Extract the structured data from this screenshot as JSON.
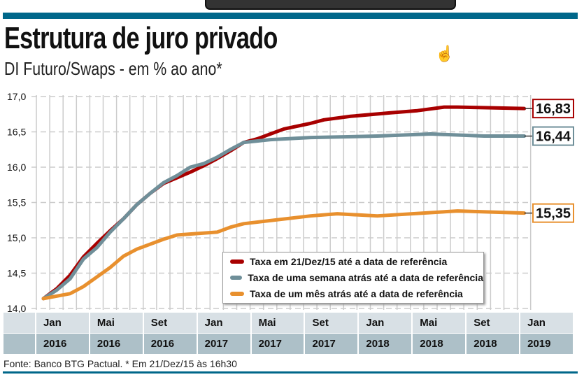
{
  "header": {
    "title": "Estrutura de juro privado",
    "subtitle": "DI Futuro/Swaps - em % ao ano*"
  },
  "footer": {
    "source": "Fonte: Banco BTG Pactual. * Em 21/Dez/15 às 16h30"
  },
  "colors": {
    "accent": "#00678a",
    "red": "#a80000",
    "grey": "#6f8f99",
    "orange": "#e8902e"
  },
  "chart_data": {
    "type": "line",
    "ylim": [
      14.0,
      17.0
    ],
    "yticks": [
      "17,0",
      "16,5",
      "16,0",
      "15,5",
      "15,0",
      "14,5",
      "14,0"
    ],
    "grid": "dashed",
    "legend_placement": "bottom-right",
    "x_labels": [
      {
        "month": "Jan",
        "year": "2016"
      },
      {
        "month": "Mai",
        "year": "2016"
      },
      {
        "month": "Set",
        "year": "2016"
      },
      {
        "month": "Jan",
        "year": "2017"
      },
      {
        "month": "Mai",
        "year": "2017"
      },
      {
        "month": "Set",
        "year": "2017"
      },
      {
        "month": "Jan",
        "year": "2018"
      },
      {
        "month": "Mai",
        "year": "2018"
      },
      {
        "month": "Set",
        "year": "2018"
      },
      {
        "month": "Jan",
        "year": "2019"
      }
    ],
    "series": [
      {
        "name": "Taxa em 21/Dez/15 até a data de referência",
        "color": "#a80000",
        "end_label": "16,83",
        "points": [
          [
            "2016-01",
            14.14
          ],
          [
            "2016-02",
            14.28
          ],
          [
            "2016-03",
            14.47
          ],
          [
            "2016-04",
            14.73
          ],
          [
            "2016-05",
            14.92
          ],
          [
            "2016-06",
            15.1
          ],
          [
            "2016-07",
            15.27
          ],
          [
            "2016-08",
            15.47
          ],
          [
            "2016-09",
            15.63
          ],
          [
            "2016-10",
            15.77
          ],
          [
            "2016-11",
            15.85
          ],
          [
            "2016-12",
            15.93
          ],
          [
            "2017-01",
            16.02
          ],
          [
            "2017-02",
            16.12
          ],
          [
            "2017-03",
            16.23
          ],
          [
            "2017-04",
            16.35
          ],
          [
            "2017-05",
            16.4
          ],
          [
            "2017-06",
            16.47
          ],
          [
            "2017-07",
            16.54
          ],
          [
            "2017-09",
            16.62
          ],
          [
            "2017-10",
            16.67
          ],
          [
            "2017-12",
            16.72
          ],
          [
            "2018-03",
            16.77
          ],
          [
            "2018-05",
            16.8
          ],
          [
            "2018-07",
            16.85
          ],
          [
            "2018-08",
            16.85
          ],
          [
            "2019-01",
            16.83
          ]
        ]
      },
      {
        "name": "Taxa de uma semana atrás até a data de referência",
        "color": "#6f8f99",
        "end_label": "16,44",
        "points": [
          [
            "2016-01",
            14.14
          ],
          [
            "2016-02",
            14.26
          ],
          [
            "2016-03",
            14.42
          ],
          [
            "2016-04",
            14.7
          ],
          [
            "2016-05",
            14.86
          ],
          [
            "2016-06",
            15.08
          ],
          [
            "2016-07",
            15.27
          ],
          [
            "2016-08",
            15.47
          ],
          [
            "2016-09",
            15.63
          ],
          [
            "2016-10",
            15.78
          ],
          [
            "2016-11",
            15.88
          ],
          [
            "2016-12",
            16.0
          ],
          [
            "2017-01",
            16.05
          ],
          [
            "2017-02",
            16.14
          ],
          [
            "2017-03",
            16.25
          ],
          [
            "2017-04",
            16.35
          ],
          [
            "2017-05",
            16.37
          ],
          [
            "2017-06",
            16.39
          ],
          [
            "2017-09",
            16.42
          ],
          [
            "2018-02",
            16.44
          ],
          [
            "2018-06",
            16.47
          ],
          [
            "2018-10",
            16.44
          ],
          [
            "2019-01",
            16.44
          ]
        ]
      },
      {
        "name": "Taxa de um mês atrás até a data de referência",
        "color": "#e8902e",
        "end_label": "15,35",
        "points": [
          [
            "2016-01",
            14.14
          ],
          [
            "2016-03",
            14.21
          ],
          [
            "2016-04",
            14.31
          ],
          [
            "2016-06",
            14.58
          ],
          [
            "2016-07",
            14.74
          ],
          [
            "2016-08",
            14.84
          ],
          [
            "2016-10",
            14.98
          ],
          [
            "2016-11",
            15.04
          ],
          [
            "2017-02",
            15.08
          ],
          [
            "2017-03",
            15.15
          ],
          [
            "2017-04",
            15.2
          ],
          [
            "2017-09",
            15.31
          ],
          [
            "2017-11",
            15.34
          ],
          [
            "2018-02",
            15.31
          ],
          [
            "2018-08",
            15.38
          ],
          [
            "2019-01",
            15.35
          ]
        ]
      }
    ]
  }
}
